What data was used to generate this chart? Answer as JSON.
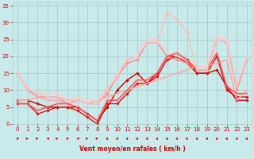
{
  "bg_color": "#c8eaea",
  "grid_color": "#aacccc",
  "text_color": "#cc0000",
  "xlabel": "Vent moyen/en rafales ( km/h )",
  "xlim": [
    -0.5,
    23.5
  ],
  "ylim": [
    0,
    36
  ],
  "yticks": [
    0,
    5,
    10,
    15,
    20,
    25,
    30,
    35
  ],
  "xticks": [
    0,
    1,
    2,
    3,
    4,
    5,
    6,
    7,
    8,
    9,
    10,
    11,
    12,
    13,
    14,
    15,
    16,
    17,
    18,
    19,
    20,
    21,
    22,
    23
  ],
  "lines": [
    {
      "x": [
        0,
        1,
        2,
        3,
        4,
        5,
        6,
        7,
        8,
        9,
        10,
        11,
        12,
        13,
        14,
        15,
        16,
        17,
        18,
        19,
        20,
        21,
        22,
        23
      ],
      "y": [
        7,
        7,
        6,
        5,
        5,
        5,
        5,
        3,
        1,
        5,
        10,
        13,
        15,
        12,
        15,
        20,
        20,
        19,
        15,
        15,
        16,
        11,
        7,
        7
      ],
      "color": "#cc0000",
      "lw": 1.0,
      "marker": "D",
      "ms": 1.8
    },
    {
      "x": [
        0,
        1,
        2,
        3,
        4,
        5,
        6,
        7,
        8,
        9,
        10,
        11,
        12,
        13,
        14,
        15,
        16,
        17,
        18,
        19,
        20,
        21,
        22,
        23
      ],
      "y": [
        6,
        6,
        3,
        4,
        5,
        5,
        4,
        2,
        0,
        6,
        6,
        9,
        12,
        12,
        14,
        19,
        20,
        18,
        15,
        15,
        20,
        10,
        8,
        8
      ],
      "color": "#dd1111",
      "lw": 1.0,
      "marker": "D",
      "ms": 1.8
    },
    {
      "x": [
        0,
        1,
        2,
        3,
        4,
        5,
        6,
        7,
        8,
        9,
        10,
        11,
        12,
        13,
        14,
        15,
        16,
        17,
        18,
        19,
        20,
        21,
        22,
        23
      ],
      "y": [
        15,
        10,
        8,
        8,
        8,
        6,
        7,
        6,
        6,
        9,
        14,
        18,
        19,
        24,
        24,
        20,
        19,
        18,
        16,
        16,
        25,
        24,
        10,
        19
      ],
      "color": "#ff8888",
      "lw": 1.0,
      "marker": "D",
      "ms": 1.8
    },
    {
      "x": [
        0,
        1,
        2,
        3,
        4,
        5,
        6,
        7,
        8,
        9,
        10,
        11,
        12,
        13,
        14,
        15,
        16,
        17,
        18,
        19,
        20,
        21,
        22,
        23
      ],
      "y": [
        7,
        7,
        8,
        7,
        7,
        6,
        7,
        6,
        7,
        8,
        9,
        10,
        11,
        12,
        13,
        14,
        15,
        16,
        17,
        17,
        18,
        19,
        7,
        10
      ],
      "color": "#ffaaaa",
      "lw": 1.2,
      "marker": null,
      "ms": 0
    },
    {
      "x": [
        0,
        1,
        2,
        3,
        4,
        5,
        6,
        7,
        8,
        9,
        10,
        11,
        12,
        13,
        14,
        15,
        16,
        17,
        18,
        19,
        20,
        21,
        22,
        23
      ],
      "y": [
        15,
        11,
        9,
        9,
        9,
        7,
        8,
        7,
        7,
        10,
        15,
        19,
        20,
        25,
        25,
        21,
        20,
        19,
        17,
        17,
        26,
        25,
        11,
        20
      ],
      "color": "#ffcccc",
      "lw": 1.2,
      "marker": null,
      "ms": 0
    },
    {
      "x": [
        0,
        1,
        2,
        3,
        4,
        5,
        6,
        7,
        8,
        9,
        10,
        11,
        12,
        13,
        14,
        15,
        16,
        17,
        18,
        19,
        20,
        21,
        22,
        23
      ],
      "y": [
        6,
        6,
        4,
        5,
        6,
        6,
        5,
        3,
        1,
        7,
        7,
        10,
        13,
        13,
        15,
        20,
        21,
        19,
        16,
        16,
        21,
        11,
        9,
        9
      ],
      "color": "#ff5555",
      "lw": 1.2,
      "marker": null,
      "ms": 0
    },
    {
      "x": [
        0,
        1,
        2,
        3,
        4,
        5,
        6,
        7,
        8,
        9,
        10,
        11,
        12,
        13,
        14,
        15,
        16,
        17,
        18,
        19,
        20,
        21,
        22,
        23
      ],
      "y": [
        15,
        10,
        9,
        8,
        8,
        7,
        7,
        6,
        6,
        10,
        14,
        19,
        20,
        24,
        24,
        33,
        31,
        27,
        16,
        16,
        25,
        24,
        11,
        19
      ],
      "color": "#ffbbbb",
      "lw": 1.0,
      "marker": "D",
      "ms": 1.8
    }
  ],
  "wind_dirs": [
    225,
    90,
    90,
    270,
    90,
    135,
    270,
    90,
    90,
    45,
    45,
    45,
    45,
    45,
    45,
    45,
    45,
    45,
    45,
    45,
    45,
    45,
    45,
    45
  ]
}
